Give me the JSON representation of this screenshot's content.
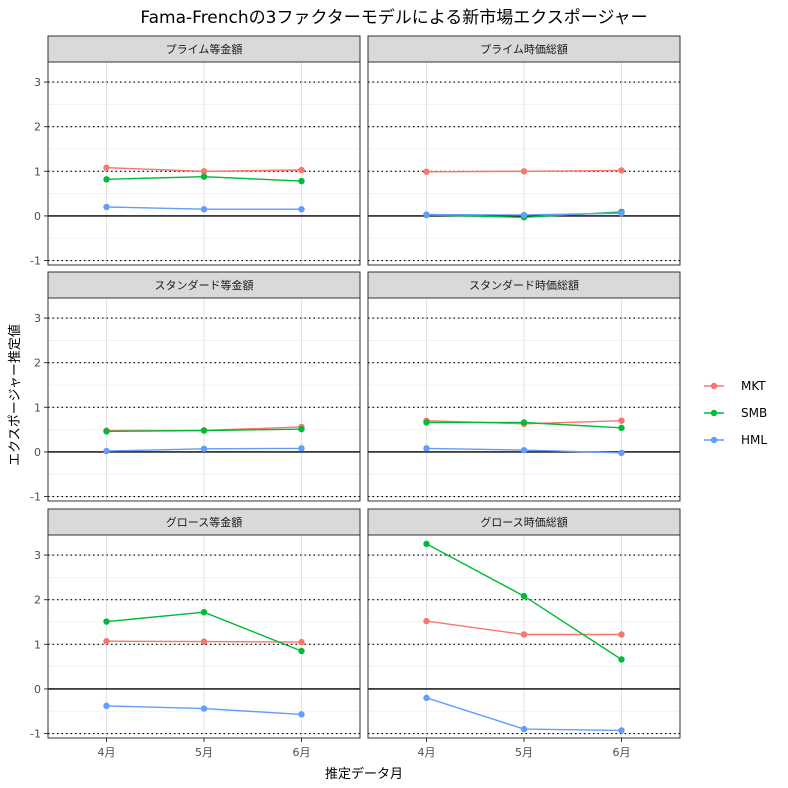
{
  "chart_data": {
    "type": "line",
    "title": "Fama-Frenchの3ファクターモデルによる新市場エクスポージャー",
    "xlabel": "推定データ月",
    "ylabel": "エクスポージャー推定値",
    "categories": [
      "4月",
      "5月",
      "6月"
    ],
    "ylim": [
      -1.1,
      3.45
    ],
    "yticks": [
      -1,
      0,
      1,
      2,
      3
    ],
    "grid": true,
    "reference_lines": {
      "solid": [
        0
      ],
      "dotted": [
        -1,
        1,
        2,
        3
      ]
    },
    "legend": {
      "position": "right"
    },
    "colors": {
      "MKT": "#F8766D",
      "SMB": "#00BA38",
      "HML": "#619CFF"
    },
    "panels": [
      {
        "title": "プライム等金額",
        "series": [
          {
            "name": "MKT",
            "values": [
              1.08,
              1.0,
              1.03
            ]
          },
          {
            "name": "SMB",
            "values": [
              0.82,
              0.88,
              0.78
            ]
          },
          {
            "name": "HML",
            "values": [
              0.2,
              0.15,
              0.15
            ]
          }
        ]
      },
      {
        "title": "プライム時価総額",
        "series": [
          {
            "name": "MKT",
            "values": [
              0.99,
              1.0,
              1.02
            ]
          },
          {
            "name": "SMB",
            "values": [
              0.02,
              -0.03,
              0.09
            ]
          },
          {
            "name": "HML",
            "values": [
              0.03,
              0.02,
              0.06
            ]
          }
        ]
      },
      {
        "title": "スタンダード等金額",
        "series": [
          {
            "name": "MKT",
            "values": [
              0.48,
              0.48,
              0.56
            ]
          },
          {
            "name": "SMB",
            "values": [
              0.46,
              0.48,
              0.51
            ]
          },
          {
            "name": "HML",
            "values": [
              0.02,
              0.07,
              0.08
            ]
          }
        ]
      },
      {
        "title": "スタンダード時価総額",
        "series": [
          {
            "name": "MKT",
            "values": [
              0.7,
              0.63,
              0.7
            ]
          },
          {
            "name": "SMB",
            "values": [
              0.66,
              0.66,
              0.54
            ]
          },
          {
            "name": "HML",
            "values": [
              0.08,
              0.04,
              -0.02
            ]
          }
        ]
      },
      {
        "title": "グロース等金額",
        "series": [
          {
            "name": "MKT",
            "values": [
              1.07,
              1.06,
              1.05
            ]
          },
          {
            "name": "SMB",
            "values": [
              1.51,
              1.72,
              0.85
            ]
          },
          {
            "name": "HML",
            "values": [
              -0.38,
              -0.44,
              -0.57
            ]
          }
        ]
      },
      {
        "title": "グロース時価総額",
        "series": [
          {
            "name": "MKT",
            "values": [
              1.52,
              1.22,
              1.22
            ]
          },
          {
            "name": "SMB",
            "values": [
              3.25,
              2.08,
              0.66
            ]
          },
          {
            "name": "HML",
            "values": [
              -0.2,
              -0.9,
              -0.93
            ]
          }
        ]
      }
    ]
  }
}
